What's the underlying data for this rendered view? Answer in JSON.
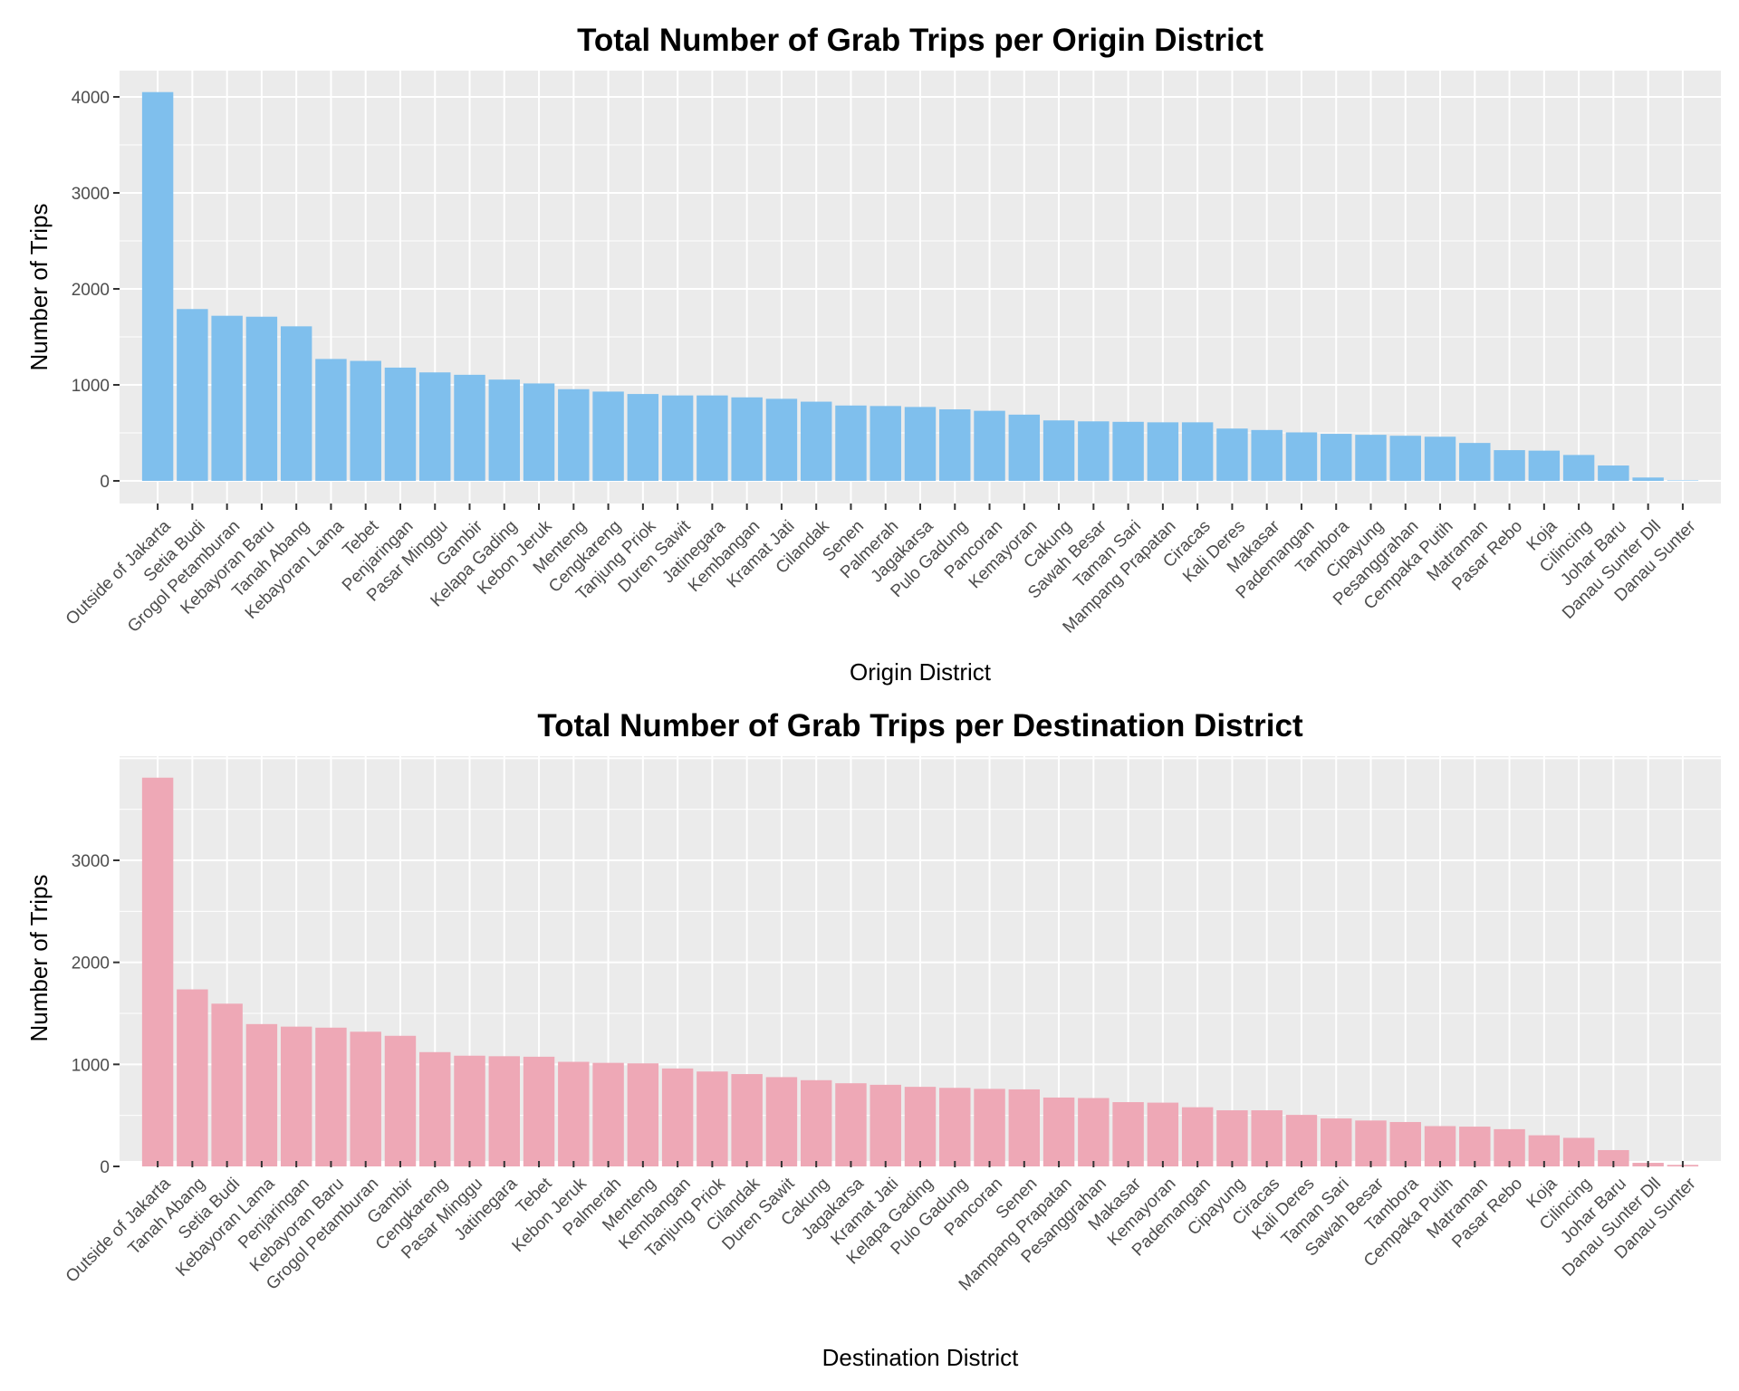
{
  "chart_data": [
    {
      "type": "bar",
      "title": "Total Number of Grab Trips per Origin District",
      "xlabel": "Origin District",
      "ylabel": "Number of Trips",
      "ylim": [
        0,
        4300
      ],
      "yticks": [
        0,
        1000,
        2000,
        3000,
        4000
      ],
      "grid": true,
      "bar_color": "#7fbfed",
      "categories": [
        "Outside of Jakarta",
        "Setia Budi",
        "Grogol Petamburan",
        "Kebayoran Baru",
        "Tanah Abang",
        "Kebayoran Lama",
        "Tebet",
        "Penjaringan",
        "Pasar Minggu",
        "Gambir",
        "Kelapa Gading",
        "Kebon Jeruk",
        "Menteng",
        "Cengkareng",
        "Tanjung Priok",
        "Duren Sawit",
        "Jatinegara",
        "Kembangan",
        "Kramat Jati",
        "Cilandak",
        "Senen",
        "Palmerah",
        "Jagakarsa",
        "Pulo Gadung",
        "Pancoran",
        "Kemayoran",
        "Cakung",
        "Sawah Besar",
        "Taman Sari",
        "Mampang Prapatan",
        "Ciracas",
        "Kali Deres",
        "Makasar",
        "Pademangan",
        "Tambora",
        "Cipayung",
        "Pesanggrahan",
        "Cempaka Putih",
        "Matraman",
        "Pasar Rebo",
        "Koja",
        "Cilincing",
        "Johar Baru",
        "Danau Sunter Dll",
        "Danau Sunter"
      ],
      "values": [
        4050,
        1790,
        1720,
        1710,
        1610,
        1270,
        1250,
        1180,
        1130,
        1105,
        1055,
        1015,
        955,
        930,
        905,
        890,
        890,
        870,
        855,
        825,
        785,
        780,
        770,
        745,
        730,
        690,
        630,
        620,
        615,
        610,
        610,
        545,
        530,
        505,
        490,
        480,
        470,
        460,
        395,
        320,
        315,
        270,
        160,
        35,
        5
      ]
    },
    {
      "type": "bar",
      "title": "Total Number of Grab Trips per Destination District",
      "xlabel": "Destination District",
      "ylabel": "Number of Trips",
      "ylim": [
        0,
        4000
      ],
      "yticks": [
        0,
        1000,
        2000,
        3000
      ],
      "grid": true,
      "bar_color": "#eea8b6",
      "categories": [
        "Outside of Jakarta",
        "Tanah Abang",
        "Setia Budi",
        "Kebayoran Lama",
        "Penjaringan",
        "Kebayoran Baru",
        "Grogol Petamburan",
        "Gambir",
        "Cengkareng",
        "Pasar Minggu",
        "Jatinegara",
        "Tebet",
        "Kebon Jeruk",
        "Palmerah",
        "Menteng",
        "Kembangan",
        "Tanjung Priok",
        "Cilandak",
        "Duren Sawit",
        "Cakung",
        "Jagakarsa",
        "Kramat Jati",
        "Kelapa Gading",
        "Pulo Gadung",
        "Pancoran",
        "Senen",
        "Mampang Prapatan",
        "Pesanggrahan",
        "Makasar",
        "Kemayoran",
        "Pademangan",
        "Cipayung",
        "Ciracas",
        "Kali Deres",
        "Taman Sari",
        "Sawah Besar",
        "Tambora",
        "Cempaka Putih",
        "Matraman",
        "Pasar Rebo",
        "Koja",
        "Cilincing",
        "Johar Baru",
        "Danau Sunter Dll",
        "Danau Sunter"
      ],
      "values": [
        3810,
        1735,
        1595,
        1395,
        1370,
        1360,
        1320,
        1280,
        1120,
        1085,
        1080,
        1075,
        1025,
        1015,
        1010,
        960,
        930,
        905,
        875,
        845,
        815,
        800,
        780,
        770,
        760,
        755,
        675,
        670,
        630,
        625,
        580,
        550,
        550,
        505,
        470,
        450,
        435,
        395,
        390,
        365,
        305,
        280,
        160,
        35,
        15
      ]
    }
  ]
}
